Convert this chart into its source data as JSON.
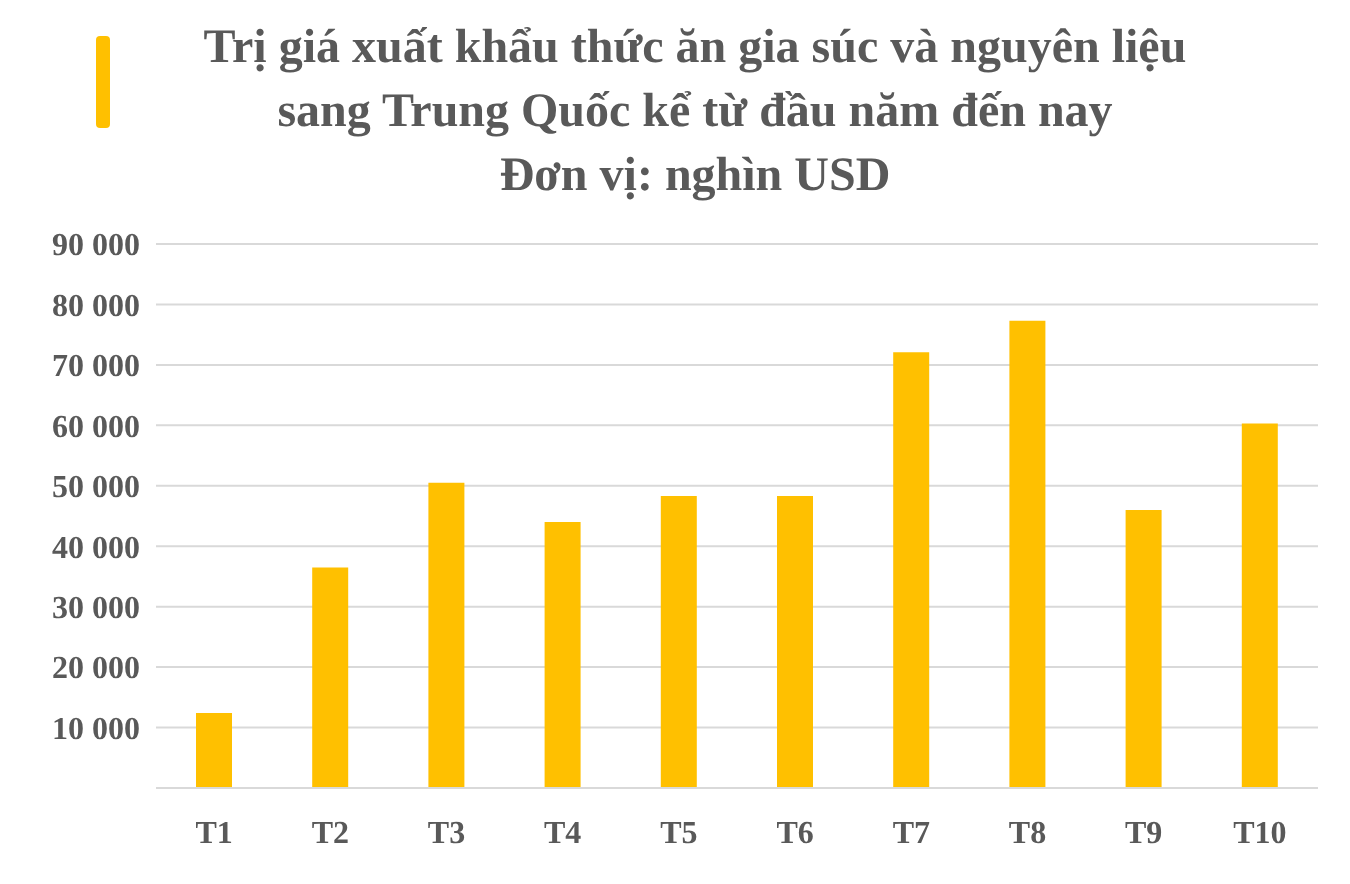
{
  "chart_data": {
    "type": "bar",
    "title": "Trị giá xuất khẩu thức ăn gia súc và nguyên liệu sang Trung Quốc kể từ đầu năm đến nay",
    "subtitle": "Đơn vị: nghìn USD",
    "categories": [
      "T1",
      "T2",
      "T3",
      "T4",
      "T5",
      "T6",
      "T7",
      "T8",
      "T9",
      "T10"
    ],
    "values": [
      12400,
      36500,
      50500,
      44000,
      48300,
      48300,
      72100,
      77300,
      46000,
      60300
    ],
    "color": "#ffc000",
    "ylim": [
      0,
      90000
    ],
    "yticks": [
      {
        "value": 0,
        "label": null
      },
      {
        "value": 10000,
        "label": "10 000"
      },
      {
        "value": 20000,
        "label": "20 000"
      },
      {
        "value": 30000,
        "label": "30 000"
      },
      {
        "value": 40000,
        "label": "40 000"
      },
      {
        "value": 50000,
        "label": "50 000"
      },
      {
        "value": 60000,
        "label": "60 000"
      },
      {
        "value": 70000,
        "label": "70 000"
      },
      {
        "value": 80000,
        "label": "80 000"
      },
      {
        "value": 90000,
        "label": "90 000"
      }
    ],
    "grid": "y",
    "legend": false
  }
}
